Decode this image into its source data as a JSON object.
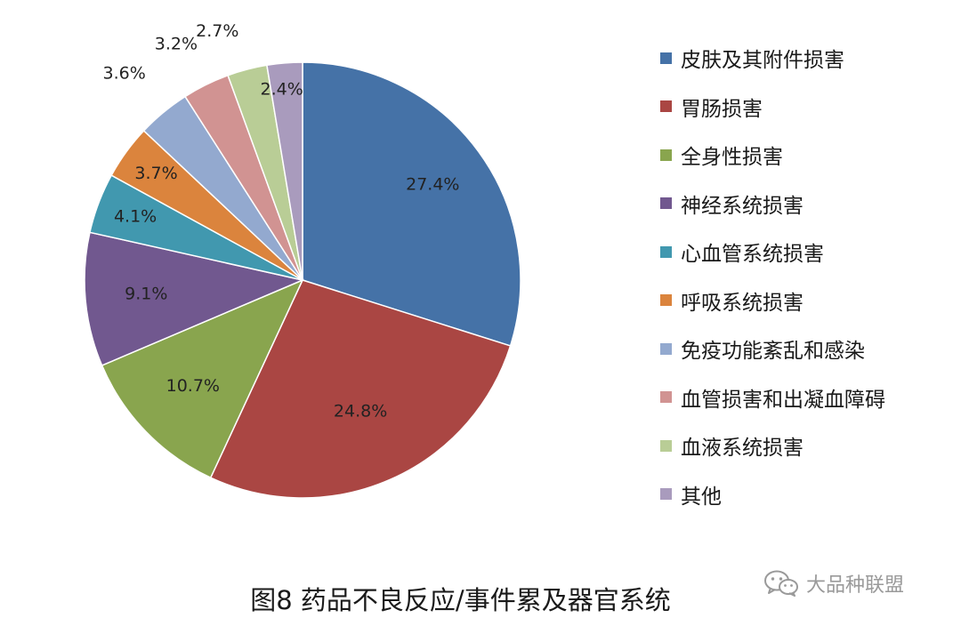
{
  "chart_data": {
    "type": "pie",
    "title": "图8 药品不良反应/事件累及器官系统",
    "categories": [
      "皮肤及其附件损害",
      "胃肠损害",
      "全身性损害",
      "神经系统损害",
      "心血管系统损害",
      "呼吸系统损害",
      "免疫功能紊乱和感染",
      "血管损害和出凝血障碍",
      "血液系统损害",
      "其他"
    ],
    "values": [
      27.4,
      24.8,
      10.7,
      9.1,
      4.1,
      3.7,
      3.6,
      3.2,
      2.7,
      2.4
    ],
    "labels": [
      "27.4%",
      "24.8%",
      "10.7%",
      "9.1%",
      "4.1%",
      "3.7%",
      "3.6%",
      "3.2%",
      "2.7%",
      "2.4%"
    ],
    "colors": [
      "#4572a7",
      "#aa4643",
      "#89a54e",
      "#71588f",
      "#4198af",
      "#db843d",
      "#93a9cf",
      "#d19392",
      "#b9cd96",
      "#a99bbd"
    ],
    "legend_position": "right"
  },
  "watermark": {
    "icon": "wechat-icon",
    "text": "大品种联盟"
  }
}
